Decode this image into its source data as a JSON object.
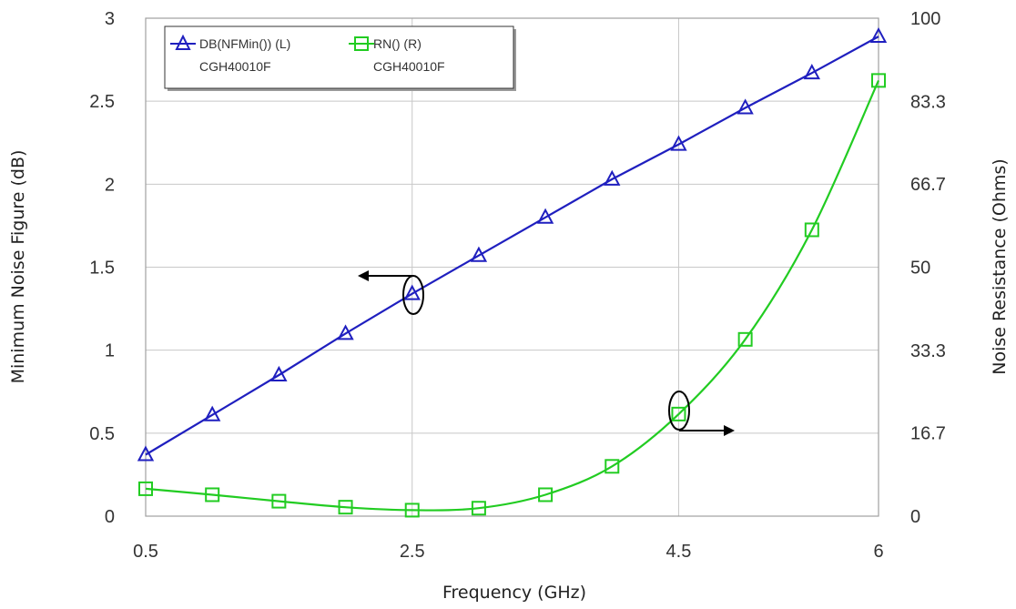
{
  "chart_data": {
    "type": "line",
    "xlabel": "Frequency (GHz)",
    "ylabel_left": "Minimum Noise Figure (dB)",
    "ylabel_right": "Noise Resistance (Ohms)",
    "xlim": [
      0.5,
      6
    ],
    "ylim_left": [
      0,
      3
    ],
    "ylim_right": [
      0,
      100
    ],
    "x_ticks": [
      "0.5",
      "2.5",
      "4.5",
      "6"
    ],
    "x_tick_values": [
      0.5,
      2.5,
      4.5,
      6
    ],
    "y_left_ticks": [
      "0",
      "0.5",
      "1",
      "1.5",
      "2",
      "2.5",
      "3"
    ],
    "y_left_tick_values": [
      0,
      0.5,
      1,
      1.5,
      2,
      2.5,
      3
    ],
    "y_right_ticks": [
      "0",
      "16.7",
      "33.3",
      "50",
      "66.7",
      "83.3",
      "100"
    ],
    "y_right_tick_values": [
      0,
      16.7,
      33.3,
      50,
      66.7,
      83.3,
      100
    ],
    "grid": true,
    "legend_position": "top-left",
    "series": [
      {
        "name": "DB(NFMin()) (L)",
        "subname": "CGH40010F",
        "axis": "left",
        "color": "#1f1fbf",
        "marker": "triangle",
        "x": [
          0.5,
          1.0,
          1.5,
          2.0,
          2.5,
          3.0,
          3.5,
          4.0,
          4.5,
          5.0,
          5.5,
          6.0
        ],
        "y": [
          0.37,
          0.61,
          0.85,
          1.1,
          1.34,
          1.57,
          1.8,
          2.03,
          2.24,
          2.46,
          2.67,
          2.89
        ]
      },
      {
        "name": "RN() (R)",
        "subname": "CGH40010F",
        "axis": "right",
        "color": "#22cc22",
        "marker": "square",
        "x": [
          0.5,
          1.0,
          1.5,
          2.0,
          2.5,
          3.0,
          3.5,
          4.0,
          4.5,
          5.0,
          5.5,
          6.0
        ],
        "y": [
          5.5,
          4.3,
          3.0,
          1.8,
          1.2,
          1.6,
          4.3,
          10.0,
          20.5,
          35.5,
          57.5,
          87.5
        ]
      }
    ]
  }
}
